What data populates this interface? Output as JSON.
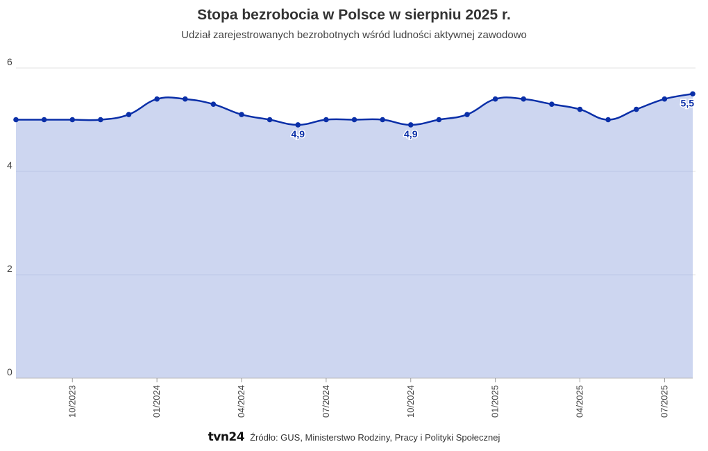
{
  "title": "Stopa bezrobocia w Polsce w sierpniu 2025 r.",
  "subtitle": "Udział zarejestrowanych bezrobotnych wśród ludności aktywnej zawodowo",
  "source": "Źródło: GUS, Ministerstwo Rodziny, Pracy i Polityki Społecznej",
  "logo_text": "tvn24",
  "colors": {
    "line": "#0a2fa8",
    "area": "#cdd6f0",
    "grid": "#e2e2e2",
    "axis_text": "#444444"
  },
  "chart_data": {
    "type": "area",
    "title": "Stopa bezrobocia w Polsce w sierpniu 2025 r.",
    "subtitle": "Udział zarejestrowanych bezrobotnych wśród ludności aktywnej zawodowo",
    "x_tick_labels": [
      "10/2023",
      "01/2024",
      "04/2024",
      "07/2024",
      "10/2024",
      "01/2025",
      "04/2025",
      "07/2025"
    ],
    "y_ticks": [
      "0",
      "2",
      "4",
      "6"
    ],
    "ylim": [
      0,
      6
    ],
    "grid": true,
    "x": [
      "08/2023",
      "09/2023",
      "10/2023",
      "11/2023",
      "12/2023",
      "01/2024",
      "02/2024",
      "03/2024",
      "04/2024",
      "05/2024",
      "06/2024",
      "07/2024",
      "08/2024",
      "09/2024",
      "10/2024",
      "11/2024",
      "12/2024",
      "01/2025",
      "02/2025",
      "03/2025",
      "04/2025",
      "05/2025",
      "06/2025",
      "07/2025",
      "08/2025"
    ],
    "series": [
      {
        "values": [
          5.0,
          5.0,
          5.0,
          5.0,
          5.1,
          5.4,
          5.4,
          5.3,
          5.1,
          5.0,
          4.9,
          5.0,
          5.0,
          5.0,
          4.9,
          5.0,
          5.1,
          5.4,
          5.4,
          5.3,
          5.2,
          5.0,
          5.2,
          5.4,
          5.5
        ]
      }
    ],
    "data_labels": [
      {
        "x": "06/2024",
        "label": "4,9"
      },
      {
        "x": "10/2024",
        "label": "4,9"
      },
      {
        "x": "08/2025",
        "label": "5,5"
      }
    ]
  }
}
